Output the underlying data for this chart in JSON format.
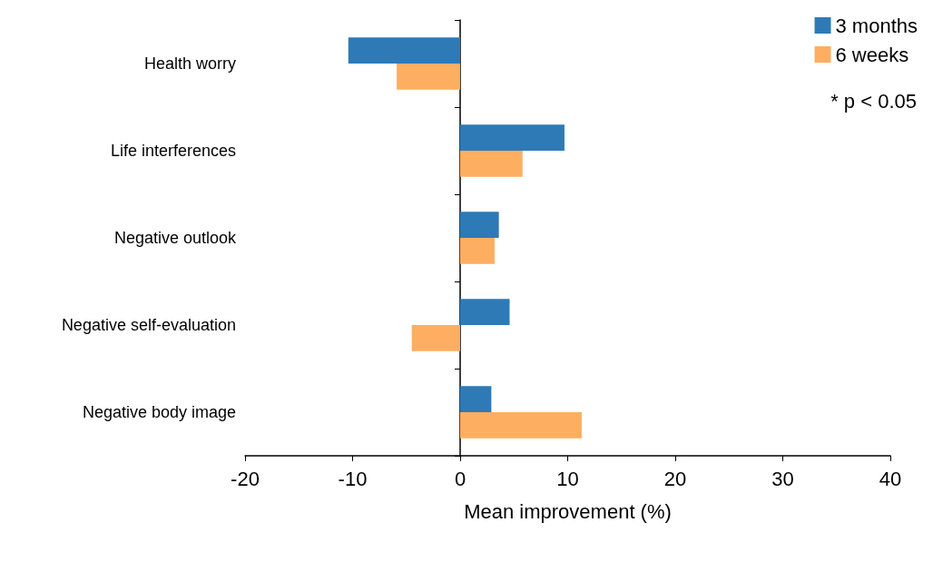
{
  "chart_data": {
    "type": "bar",
    "orientation": "horizontal",
    "categories": [
      "Health worry",
      "Life interferences",
      "Negative outlook",
      "Negative self-evaluation",
      "Negative body image"
    ],
    "series": [
      {
        "name": "3 months",
        "color": "#2e7ab6",
        "values": [
          -10.4,
          9.7,
          3.6,
          4.6,
          2.9
        ]
      },
      {
        "name": "6 weeks",
        "color": "#fdae61",
        "values": [
          -5.9,
          5.8,
          3.2,
          -4.5,
          11.3
        ]
      }
    ],
    "xlabel": "Mean improvement (%)",
    "xlim": [
      -20,
      40
    ],
    "xticks": [
      -20,
      -10,
      0,
      10,
      20,
      30,
      40
    ],
    "legend": "top right",
    "annotations": [
      "* p < 0.05"
    ]
  }
}
